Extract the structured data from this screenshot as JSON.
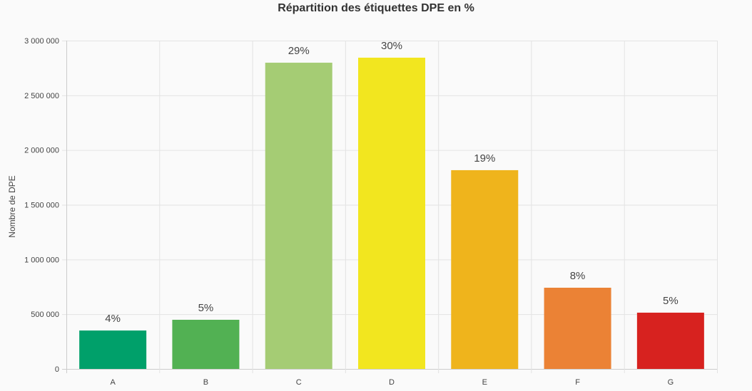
{
  "chart_data": {
    "type": "bar",
    "title": "Répartition des étiquettes DPE en %",
    "xlabel": "",
    "ylabel": "Nombre de DPE",
    "ylim": [
      0,
      3000000
    ],
    "yticks": [
      0,
      500000,
      1000000,
      1500000,
      2000000,
      2500000,
      3000000
    ],
    "ytick_labels": [
      "0",
      "500 000",
      "1 000 000",
      "1 500 000",
      "2 000 000",
      "2 500 000",
      "3 000 000"
    ],
    "categories": [
      "A",
      "B",
      "C",
      "D",
      "E",
      "F",
      "G"
    ],
    "values": [
      351000,
      449000,
      2798000,
      2844000,
      1816000,
      742000,
      514000
    ],
    "data_labels": [
      "4%",
      "5%",
      "29%",
      "30%",
      "19%",
      "8%",
      "5%"
    ],
    "colors": [
      "#00a06a",
      "#52b153",
      "#a5cc74",
      "#f2e61f",
      "#efb41c",
      "#eb8235",
      "#d7221f"
    ],
    "grid": true,
    "legend": "none"
  }
}
